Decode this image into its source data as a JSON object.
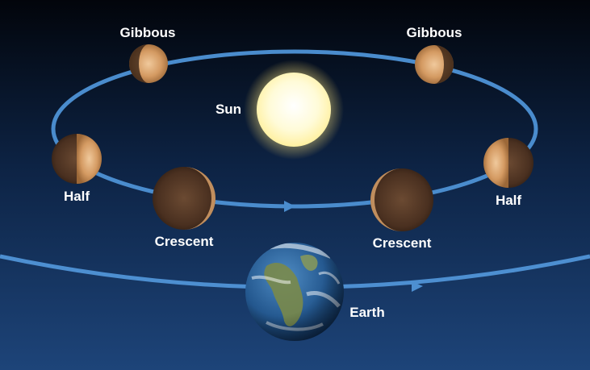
{
  "labels": {
    "gibbous_left": "Gibbous",
    "gibbous_right": "Gibbous",
    "sun": "Sun",
    "half_left": "Half",
    "half_right": "Half",
    "crescent_left": "Crescent",
    "crescent_right": "Crescent",
    "earth": "Earth"
  },
  "colors": {
    "sky_top": "#02050b",
    "sky_bottom": "#1a3e73",
    "orbit": "#4d8fd1",
    "sun": "#fff8c8",
    "planet": "#b8824f"
  }
}
